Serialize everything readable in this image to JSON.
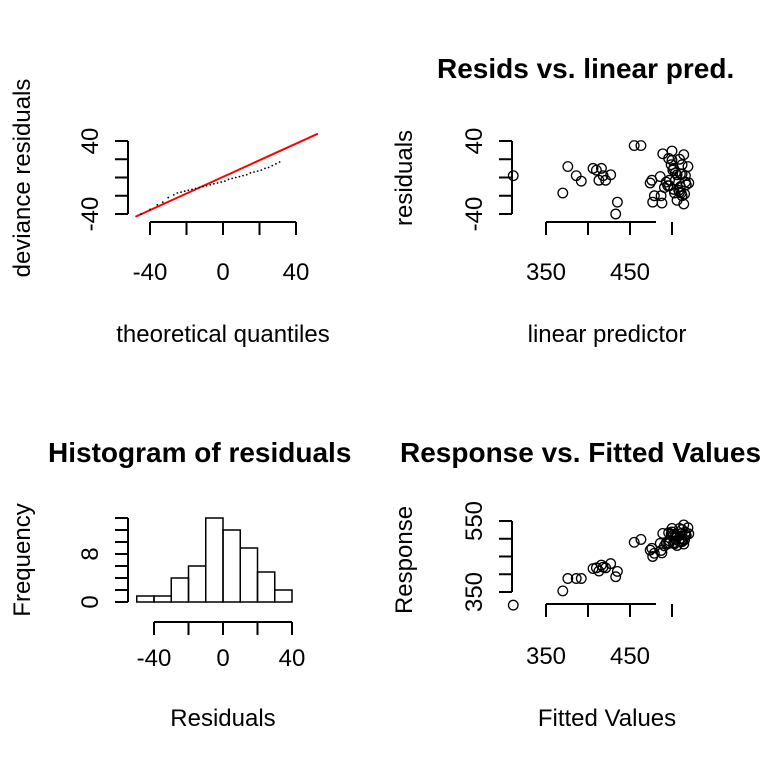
{
  "chart_data": [
    {
      "type": "scatter",
      "subtype": "qq",
      "title": "",
      "xlabel": "theoretical quantiles",
      "ylabel": "deviance residuals",
      "xticks": [
        "-40",
        "0",
        "40"
      ],
      "yticks": [
        "-40",
        "40"
      ],
      "xlim": [
        -48,
        52
      ],
      "ylim": [
        -43,
        48
      ],
      "points": [
        [
          -45,
          -40
        ],
        [
          -40,
          -35
        ],
        [
          -36,
          -30
        ],
        [
          -33,
          -27
        ],
        [
          -30,
          -22
        ],
        [
          -27,
          -19
        ],
        [
          -25,
          -17
        ],
        [
          -23,
          -16
        ],
        [
          -21,
          -15
        ],
        [
          -19,
          -14
        ],
        [
          -17,
          -13
        ],
        [
          -15,
          -12
        ],
        [
          -13,
          -11
        ],
        [
          -11,
          -10
        ],
        [
          -9,
          -9
        ],
        [
          -7,
          -8
        ],
        [
          -5,
          -7
        ],
        [
          -3,
          -6
        ],
        [
          -1,
          -5
        ],
        [
          1,
          -4
        ],
        [
          3,
          -2
        ],
        [
          5,
          -1
        ],
        [
          7,
          0
        ],
        [
          9,
          1
        ],
        [
          11,
          2
        ],
        [
          13,
          3
        ],
        [
          15,
          5
        ],
        [
          17,
          6
        ],
        [
          19,
          7
        ],
        [
          21,
          8
        ],
        [
          23,
          10
        ],
        [
          25,
          11
        ],
        [
          27,
          13
        ],
        [
          29,
          15
        ],
        [
          31,
          17
        ]
      ],
      "reference_line": {
        "color": "#ff0000",
        "from": [
          -48,
          -43
        ],
        "to": [
          52,
          48
        ]
      }
    },
    {
      "type": "scatter",
      "title": "Resids vs. linear pred.",
      "xlabel": "linear predictor",
      "ylabel": "residuals",
      "xticks": [
        "350",
        "450"
      ],
      "yticks": [
        "-40",
        "40"
      ],
      "xlim": [
        305,
        520
      ],
      "ylim": [
        -50,
        55
      ],
      "points": [
        [
          311,
          2
        ],
        [
          370,
          -17
        ],
        [
          376,
          12
        ],
        [
          386,
          2
        ],
        [
          392,
          -4
        ],
        [
          406,
          10
        ],
        [
          410,
          8
        ],
        [
          413,
          -3
        ],
        [
          416,
          10
        ],
        [
          418,
          2
        ],
        [
          421,
          -3
        ],
        [
          427,
          3
        ],
        [
          433,
          -40
        ],
        [
          435,
          -27
        ],
        [
          455,
          35
        ],
        [
          463,
          35
        ],
        [
          474,
          -6
        ],
        [
          476,
          -3
        ],
        [
          477,
          -27
        ],
        [
          479,
          -20
        ],
        [
          486,
          1
        ],
        [
          487,
          -20
        ],
        [
          488,
          -28
        ],
        [
          489,
          26
        ],
        [
          491,
          -11
        ],
        [
          493,
          -5
        ],
        [
          495,
          -9
        ],
        [
          496,
          21
        ],
        [
          497,
          -3
        ],
        [
          497,
          -9
        ],
        [
          499,
          14
        ],
        [
          500,
          29
        ],
        [
          500,
          19
        ],
        [
          501,
          8
        ],
        [
          502,
          10
        ],
        [
          502,
          -13
        ],
        [
          503,
          -17
        ],
        [
          504,
          5
        ],
        [
          504,
          -3
        ],
        [
          506,
          3
        ],
        [
          506,
          -25
        ],
        [
          508,
          -14
        ],
        [
          509,
          20
        ],
        [
          509,
          -16
        ],
        [
          510,
          4
        ],
        [
          510,
          -10
        ],
        [
          511,
          -17
        ],
        [
          512,
          4
        ],
        [
          512,
          -20
        ],
        [
          512,
          14
        ],
        [
          514,
          25
        ],
        [
          514,
          -29
        ],
        [
          515,
          -18
        ],
        [
          516,
          -5
        ],
        [
          516,
          2
        ],
        [
          517,
          -8
        ],
        [
          519,
          12
        ],
        [
          520,
          -6
        ]
      ]
    },
    {
      "type": "bar",
      "subtype": "histogram",
      "title": "Histogram of residuals",
      "xlabel": "Residuals",
      "ylabel": "Frequency",
      "xticks": [
        "-40",
        "0",
        "40"
      ],
      "yticks": [
        "0",
        "8"
      ],
      "bins": [
        -50,
        -40,
        -30,
        -20,
        -10,
        0,
        10,
        20,
        30,
        40,
        50
      ],
      "values": [
        1,
        1,
        4,
        6,
        14,
        12,
        9,
        5,
        2,
        0,
        1
      ],
      "ylim": [
        0,
        14
      ]
    },
    {
      "type": "scatter",
      "title": "Response vs. Fitted Values",
      "xlabel": "Fitted Values",
      "ylabel": "Response",
      "xticks": [
        "350",
        "450"
      ],
      "yticks": [
        "350",
        "550"
      ],
      "xlim": [
        311,
        520
      ],
      "ylim": [
        312,
        602
      ],
      "points": [
        [
          311,
          313
        ],
        [
          370,
          353
        ],
        [
          376,
          388
        ],
        [
          386,
          388
        ],
        [
          392,
          388
        ],
        [
          406,
          416
        ],
        [
          410,
          418
        ],
        [
          413,
          409
        ],
        [
          416,
          426
        ],
        [
          418,
          420
        ],
        [
          421,
          418
        ],
        [
          427,
          430
        ],
        [
          433,
          393
        ],
        [
          435,
          408
        ],
        [
          455,
          490
        ],
        [
          463,
          498
        ],
        [
          474,
          468
        ],
        [
          476,
          473
        ],
        [
          477,
          450
        ],
        [
          479,
          459
        ],
        [
          486,
          487
        ],
        [
          487,
          467
        ],
        [
          488,
          460
        ],
        [
          489,
          515
        ],
        [
          491,
          480
        ],
        [
          493,
          488
        ],
        [
          495,
          486
        ],
        [
          496,
          517
        ],
        [
          497,
          494
        ],
        [
          497,
          488
        ],
        [
          499,
          513
        ],
        [
          500,
          529
        ],
        [
          500,
          519
        ],
        [
          501,
          509
        ],
        [
          502,
          512
        ],
        [
          502,
          489
        ],
        [
          503,
          486
        ],
        [
          504,
          509
        ],
        [
          504,
          501
        ],
        [
          506,
          509
        ],
        [
          506,
          481
        ],
        [
          508,
          494
        ],
        [
          509,
          529
        ],
        [
          509,
          493
        ],
        [
          510,
          514
        ],
        [
          510,
          500
        ],
        [
          511,
          494
        ],
        [
          512,
          516
        ],
        [
          512,
          492
        ],
        [
          512,
          526
        ],
        [
          514,
          539
        ],
        [
          514,
          485
        ],
        [
          515,
          497
        ],
        [
          516,
          511
        ],
        [
          516,
          518
        ],
        [
          517,
          509
        ],
        [
          519,
          531
        ],
        [
          520,
          514
        ]
      ]
    }
  ]
}
